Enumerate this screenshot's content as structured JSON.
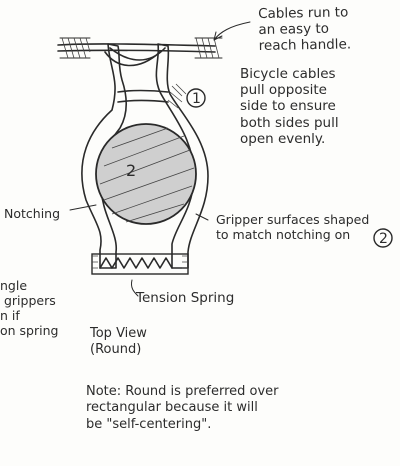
{
  "notes": {
    "cables_handle": "Cables run to\nan easy to\nreach handle.",
    "bicycle_cables": "Bicycle cables\npull opposite\nside to ensure\nboth sides pull\nopen evenly.",
    "notching": "Notching",
    "gripper_surfaces": "Gripper surfaces shaped\nto match notching on",
    "gripper_surfaces_ref": "2",
    "tension_spring": "Tension Spring",
    "left_cut": "ngle\n grippers\nn if\non spring",
    "top_view": "Top View\n(Round)",
    "note_round": "Note: Round is preferred over\nrectangular because it will\nbe \"self-centering\"."
  },
  "part_labels": [
    "1",
    "2"
  ]
}
